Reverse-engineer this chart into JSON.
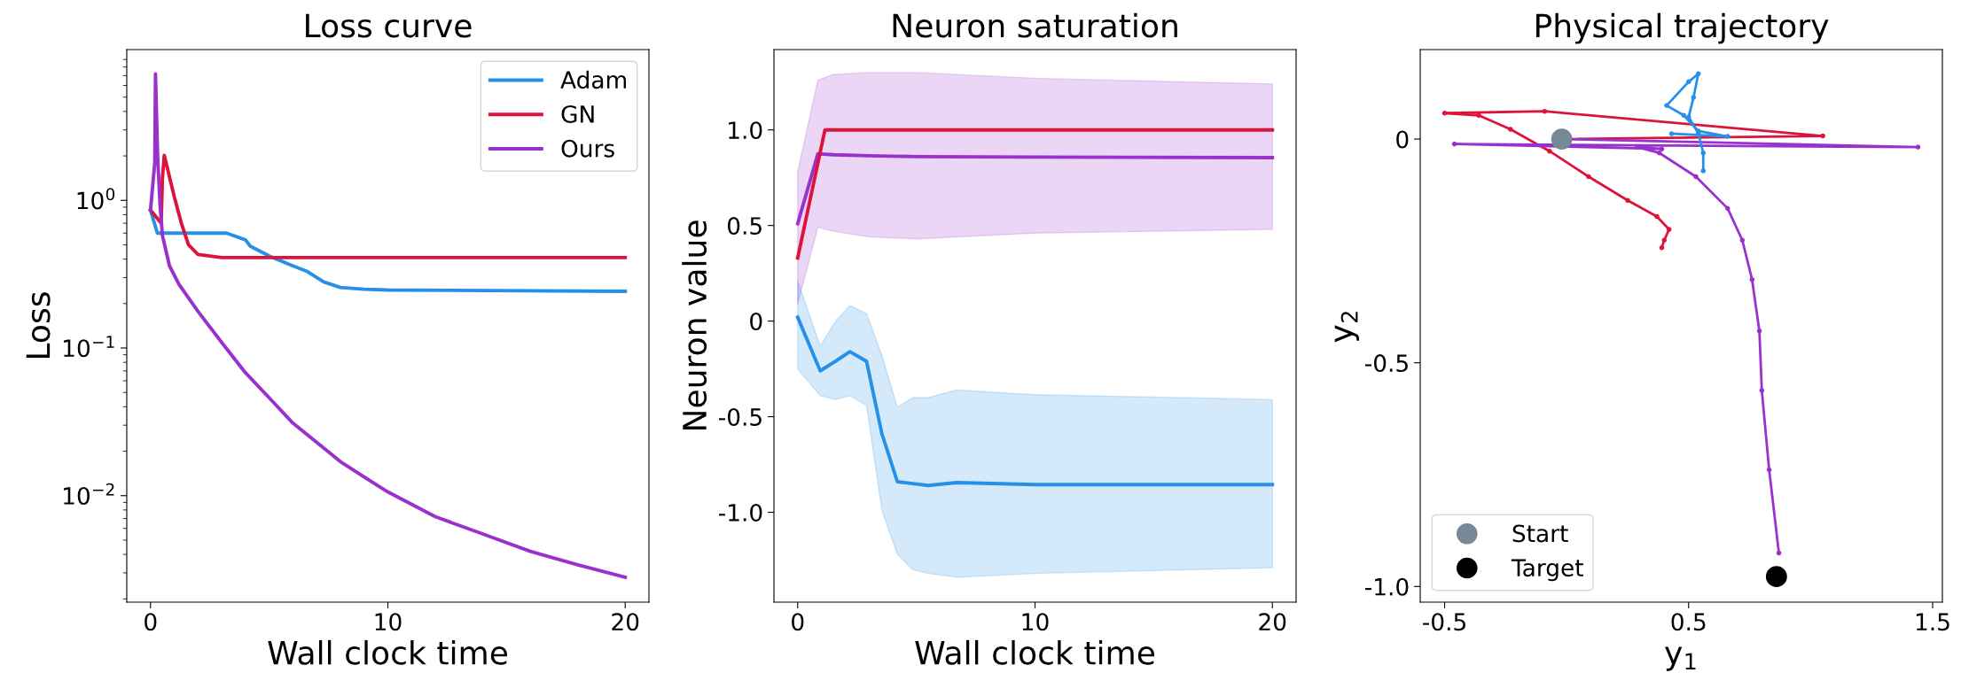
{
  "chart_data": [
    {
      "type": "line",
      "title": "Loss curve",
      "xlabel": "Wall clock time",
      "ylabel": "Loss",
      "log": "y",
      "xlim": [
        -1,
        21
      ],
      "xticks": [
        0,
        10,
        20
      ],
      "ylim": [
        0.0019,
        10.5
      ],
      "yticks": [
        {
          "value": 0.01,
          "label": "10$^{−2}$"
        },
        {
          "value": 0.1,
          "label": "10$^{−1}$"
        },
        {
          "value": 1,
          "label": "10$^{0}$"
        }
      ],
      "legend": "top right",
      "series": [
        {
          "name": "Adam",
          "color": "#2690e8",
          "x": [
            0,
            0.29,
            3.2,
            4.0,
            4.2,
            5,
            6,
            6.6,
            7.3,
            8,
            9,
            10,
            20
          ],
          "values": [
            0.86,
            0.6,
            0.6,
            0.54,
            0.49,
            0.42,
            0.36,
            0.33,
            0.28,
            0.257,
            0.25,
            0.247,
            0.242
          ]
        },
        {
          "name": "GN",
          "color": "#dc143c",
          "x": [
            0,
            0.45,
            0.5,
            0.58,
            1.0,
            1.3,
            1.6,
            2,
            3,
            20
          ],
          "values": [
            0.86,
            0.7,
            1.4,
            2.02,
            1.06,
            0.7,
            0.5,
            0.43,
            0.41,
            0.41
          ]
        },
        {
          "name": "Ours",
          "color": "#9932cc",
          "x": [
            0,
            0.18,
            0.21,
            0.3,
            0.4,
            0.5,
            0.8,
            1.2,
            2,
            3,
            4,
            5,
            6,
            7,
            8,
            9,
            10,
            12,
            14,
            16,
            18,
            20
          ],
          "values": [
            0.86,
            1.8,
            7.2,
            2.0,
            0.94,
            0.58,
            0.36,
            0.27,
            0.177,
            0.109,
            0.068,
            0.046,
            0.031,
            0.023,
            0.017,
            0.0134,
            0.0106,
            0.0072,
            0.0055,
            0.0042,
            0.0034,
            0.0028
          ]
        }
      ]
    },
    {
      "type": "line",
      "title": "Neuron saturation",
      "xlabel": "Wall clock time",
      "ylabel": "Neuron value",
      "xlim": [
        -1,
        21
      ],
      "xticks": [
        0,
        10,
        20
      ],
      "ylim": [
        -1.47,
        1.42
      ],
      "yticks": [
        {
          "value": -1,
          "label": "-1.0"
        },
        {
          "value": -0.5,
          "label": "-0.5"
        },
        0,
        {
          "value": 0.5,
          "label": "0.5"
        },
        {
          "value": 1,
          "label": "1.0"
        }
      ],
      "series": [
        {
          "color": "#9932cc",
          "x": [
            0,
            0.85,
            1.5,
            3,
            5,
            10,
            20
          ],
          "values": [
            0.51,
            0.875,
            0.87,
            0.865,
            0.86,
            0.858,
            0.855
          ],
          "lower": [
            0.09,
            0.49,
            0.47,
            0.44,
            0.43,
            0.46,
            0.48
          ],
          "upper": [
            0.78,
            1.26,
            1.29,
            1.3,
            1.3,
            1.27,
            1.24
          ]
        },
        {
          "color": "#dc143c",
          "x": [
            0,
            1.15,
            20
          ],
          "values": [
            0.33,
            1.0,
            1.0
          ]
        },
        {
          "color": "#2690e8",
          "x": [
            0,
            0.95,
            1.6,
            2.2,
            2.9,
            3.55,
            4.2,
            4.85,
            5.5,
            6.7,
            10,
            20
          ],
          "values": [
            0.02,
            -0.26,
            -0.21,
            -0.16,
            -0.21,
            -0.59,
            -0.84,
            -0.85,
            -0.86,
            -0.845,
            -0.855,
            -0.855
          ],
          "lower": [
            -0.25,
            -0.39,
            -0.41,
            -0.39,
            -0.44,
            -0.99,
            -1.22,
            -1.3,
            -1.32,
            -1.34,
            -1.32,
            -1.29
          ],
          "upper": [
            0.21,
            -0.13,
            0.0,
            0.08,
            0.04,
            -0.18,
            -0.45,
            -0.4,
            -0.4,
            -0.36,
            -0.385,
            -0.41
          ]
        }
      ]
    },
    {
      "type": "line",
      "title": "Physical trajectory",
      "xlabel": "y$_{1}$",
      "ylabel": "y$_{2}$",
      "xlim": [
        -0.6,
        1.54
      ],
      "xticks": [
        {
          "value": -0.5,
          "label": "-0.5"
        },
        {
          "value": 0.5,
          "label": "0.5"
        },
        {
          "value": 1.5,
          "label": "1.5"
        }
      ],
      "ylim": [
        -1.035,
        0.2
      ],
      "yticks": [
        {
          "value": -1,
          "label": "-1.0"
        },
        {
          "value": -0.5,
          "label": "-0.5"
        },
        0
      ],
      "legend": "bottom left",
      "series": [
        {
          "color": "#dc143c",
          "marker": "circle",
          "x": [
            -0.02,
            1.05,
            -0.09,
            -0.5,
            -0.36,
            -0.23,
            -0.07,
            0.09,
            0.25,
            0.37,
            0.42,
            0.4,
            0.39
          ],
          "values": [
            0,
            0.007,
            0.062,
            0.058,
            0.053,
            0.022,
            -0.027,
            -0.084,
            -0.137,
            -0.173,
            -0.202,
            -0.226,
            -0.243
          ]
        },
        {
          "color": "#9932cc",
          "marker": "circle",
          "x": [
            -0.02,
            1.44,
            -0.46,
            0.39,
            0.29,
            0.38,
            0.53,
            0.66,
            0.72,
            0.76,
            0.79,
            0.8,
            0.83,
            0.87
          ],
          "values": [
            0,
            -0.018,
            -0.011,
            -0.022,
            -0.018,
            -0.031,
            -0.084,
            -0.155,
            -0.226,
            -0.314,
            -0.429,
            -0.562,
            -0.739,
            -0.925
          ]
        },
        {
          "color": "#2690e8",
          "marker": "circle",
          "x": [
            0.43,
            0.66,
            0.54,
            0.48,
            0.41,
            0.5,
            0.54,
            0.52,
            0.5,
            0.54,
            0.56,
            0.56
          ],
          "values": [
            0.012,
            0.006,
            0.018,
            0.053,
            0.075,
            0.128,
            0.146,
            0.093,
            0.049,
            0.013,
            -0.031,
            -0.071
          ]
        },
        {
          "type": "scatter",
          "name": "Start",
          "color": "#778899",
          "x": [
            -0.02
          ],
          "values": [
            0
          ]
        },
        {
          "type": "scatter",
          "name": "Target",
          "color": "#000000",
          "x": [
            0.86
          ],
          "values": [
            -0.978
          ]
        }
      ]
    }
  ]
}
